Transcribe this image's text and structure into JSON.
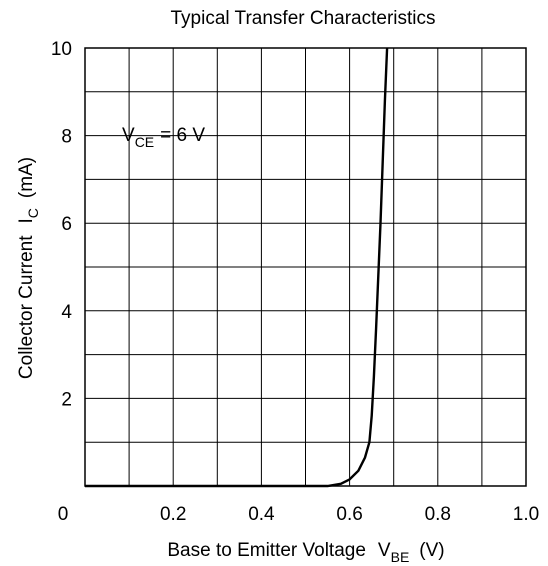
{
  "chart_data": {
    "type": "line",
    "title": "Typical Transfer Characteristics",
    "xlabel": {
      "main": "Base to Emitter Voltage",
      "symbol": "V",
      "subscript": "BE",
      "unit": "(V)"
    },
    "ylabel": {
      "main": "Collector Current",
      "symbol": "I",
      "subscript": "C",
      "unit": "(mA)"
    },
    "xlim": [
      0,
      1.0
    ],
    "ylim": [
      0,
      10
    ],
    "x_ticks": [
      "0",
      "0.2",
      "0.4",
      "0.6",
      "0.8",
      "1.0"
    ],
    "y_ticks": [
      "2",
      "4",
      "6",
      "8",
      "10"
    ],
    "grid": true,
    "annotation": {
      "symbol": "V",
      "subscript": "CE",
      "text": "= 6 V"
    },
    "series": [
      {
        "color": "#000000",
        "points": [
          [
            0.0,
            0.0
          ],
          [
            0.55,
            0.0
          ],
          [
            0.58,
            0.05
          ],
          [
            0.6,
            0.15
          ],
          [
            0.62,
            0.35
          ],
          [
            0.635,
            0.65
          ],
          [
            0.645,
            1.0
          ],
          [
            0.65,
            1.6
          ],
          [
            0.655,
            2.5
          ],
          [
            0.66,
            3.6
          ],
          [
            0.665,
            4.8
          ],
          [
            0.67,
            6.0
          ],
          [
            0.675,
            7.4
          ],
          [
            0.68,
            8.8
          ],
          [
            0.685,
            10.0
          ]
        ]
      }
    ]
  }
}
